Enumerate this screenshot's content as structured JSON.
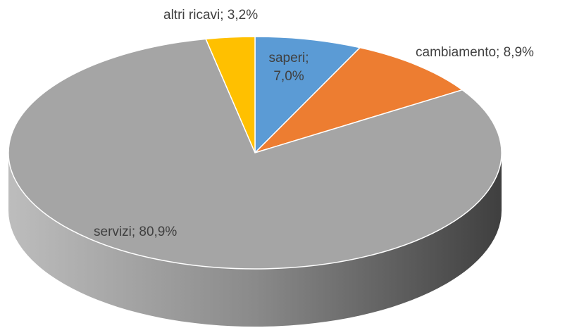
{
  "chart_data": {
    "type": "pie",
    "style": "3d",
    "values": [
      7.0,
      8.9,
      80.9,
      3.2
    ],
    "value_labels": [
      "saperi; 7,0%",
      "cambiamento; 8,9%",
      "servizi; 80,9%",
      "altri ricavi; 3,2%"
    ],
    "colors": [
      "#5b9bd5",
      "#ed7d31",
      "#a5a5a5",
      "#ffc000"
    ]
  }
}
